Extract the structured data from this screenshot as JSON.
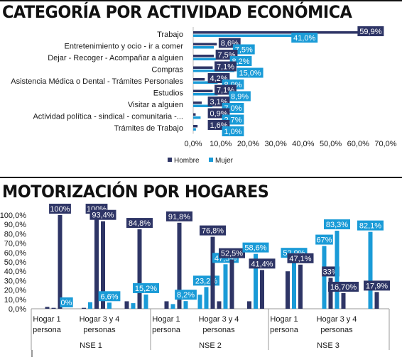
{
  "colors": {
    "hombre": "#2e3566",
    "mujer": "#1a9bd7",
    "text": "#1a1a1a",
    "bg": "#ffffff"
  },
  "chart_data": [
    {
      "type": "bar",
      "orientation": "horizontal",
      "title": "CATEGORÍA POR ACTIVIDAD ECONÓMICA",
      "categories": [
        "Trabajo",
        "Entretenimiento y ocio - ir a comer",
        "Dejar - Recoger - Acompañar a alguien",
        "Compras",
        "Asistencia Médica o Dental - Trámites Personales",
        "Estudios",
        "Visitar a alguien",
        "Actividad política - sindical - comunitaria -...",
        "Trámites de Trabajo"
      ],
      "series": [
        {
          "name": "Hombre",
          "values": [
            59.9,
            8.6,
            7.5,
            7.1,
            4.2,
            7.1,
            3.1,
            0.9,
            1.6
          ],
          "labels": [
            "59,9%",
            "8,6%",
            "7,5%",
            "7,1%",
            "4,2%",
            "7,1%",
            "3,1%",
            "0,9%",
            "1,6%"
          ]
        },
        {
          "name": "Mujer",
          "values": [
            41.0,
            7.5,
            8.2,
            15.0,
            8.9,
            8.9,
            7.0,
            2.7,
            1.0
          ],
          "labels": [
            "41,0%",
            "7,5%",
            "8,2%",
            "15,0%",
            "8,9%",
            "8,9%",
            "7,0%",
            "2,7%",
            "1,0%"
          ]
        }
      ],
      "xlim": [
        0,
        70
      ],
      "xticks": [
        "0,0%",
        "10,0%",
        "20,0%",
        "30,0%",
        "40,0%",
        "50,0%",
        "60,0%",
        "70,0%"
      ],
      "legend": [
        "Hombre",
        "Mujer"
      ],
      "legend_position": "bottom"
    },
    {
      "type": "bar",
      "orientation": "vertical",
      "title": "MOTORIZACIÓN POR HOGARES",
      "groups": [
        {
          "name": "NSE 1",
          "subgroups": [
            {
              "label_line1": "Hogar 1",
              "label_line2": "persona",
              "values": [
                2,
                1,
                100,
                0
              ],
              "labels": [
                "",
                "",
                "100%",
                "0%"
              ],
              "colors": [
                "hombre",
                "hombre",
                "hombre",
                "mujer"
              ]
            },
            {
              "label_line1": "Hogar 3 y 4",
              "label_line2": "personas",
              "values": [
                1,
                7,
                100,
                93.4,
                6.6
              ],
              "labels": [
                "",
                "",
                "100%",
                "93,4%",
                "6,6%"
              ],
              "colors": [
                "hombre",
                "mujer",
                "hombre",
                "hombre",
                "mujer"
              ]
            },
            {
              "label_line1": "",
              "label_line2": "",
              "values": [
                8,
                6,
                84.8,
                15.2
              ],
              "labels": [
                "",
                "",
                "84,8%",
                "15,2%"
              ],
              "colors": [
                "hombre",
                "mujer",
                "hombre",
                "mujer"
              ]
            }
          ]
        },
        {
          "name": "NSE 2",
          "subgroups": [
            {
              "label_line1": "Hogar 1",
              "label_line2": "persona",
              "values": [
                8,
                5,
                91.8,
                8.2
              ],
              "labels": [
                "",
                "",
                "91,8%",
                "8,2%"
              ],
              "colors": [
                "hombre",
                "mujer",
                "hombre",
                "mujer"
              ]
            },
            {
              "label_line1": "Hogar 3 y 4",
              "label_line2": "personas",
              "values": [
                15,
                23.2,
                76.8,
                8,
                47.5,
                52.5
              ],
              "labels": [
                "",
                "23,2%",
                "76,8%",
                "",
                "47,5%",
                "52,5%"
              ],
              "colors": [
                "mujer",
                "mujer",
                "hombre",
                "hombre",
                "mujer",
                "hombre"
              ]
            },
            {
              "label_line1": "",
              "label_line2": "",
              "values": [
                8,
                58.6,
                41.4
              ],
              "labels": [
                "",
                "58,6%",
                "41,4%"
              ],
              "colors": [
                "hombre",
                "mujer",
                "hombre"
              ]
            }
          ]
        },
        {
          "name": "NSE 3",
          "subgroups": [
            {
              "label_line1": "Hogar 1",
              "label_line2": "persona",
              "values": [
                40,
                52.9,
                47.1
              ],
              "labels": [
                "",
                "52,9%",
                "47,1%"
              ],
              "colors": [
                "hombre",
                "mujer",
                "hombre"
              ]
            },
            {
              "label_line1": "Hogar 3 y 4",
              "label_line2": "personas",
              "values": [
                67,
                33,
                83.3,
                16.7
              ],
              "labels": [
                "67%",
                "33%",
                "83,3%",
                "16,70%"
              ],
              "colors": [
                "mujer",
                "hombre",
                "mujer",
                "hombre"
              ]
            },
            {
              "label_line1": "",
              "label_line2": "",
              "values": [
                82.1,
                17.9
              ],
              "labels": [
                "82,1%",
                "17,9%"
              ],
              "colors": [
                "mujer",
                "hombre"
              ]
            }
          ]
        }
      ],
      "ylim": [
        0,
        100
      ],
      "yticks": [
        "0,0%",
        "10,0%",
        "20,0%",
        "30,0%",
        "40,0%",
        "50,0%",
        "60,0%",
        "70,0%",
        "80,0%",
        "90,0%",
        "100,0%"
      ]
    }
  ]
}
